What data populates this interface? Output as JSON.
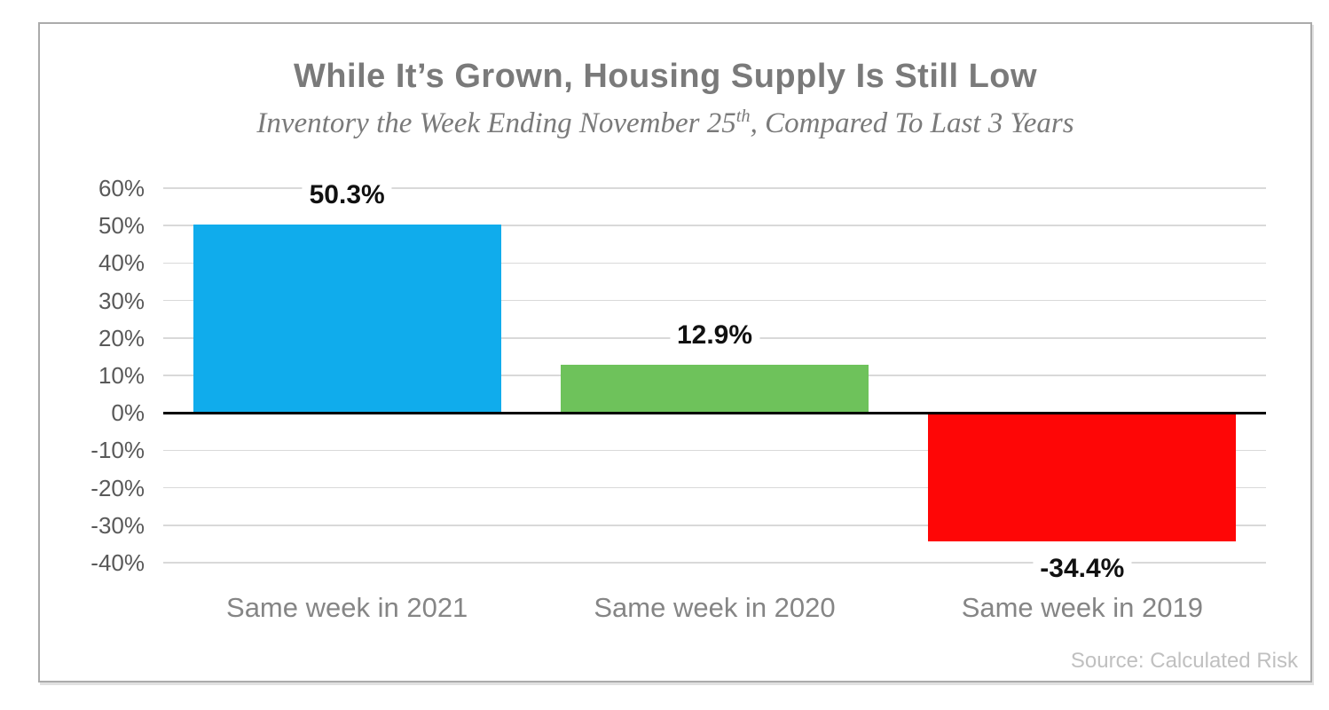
{
  "frame": {
    "border_color": "#ababab",
    "background": "#ffffff"
  },
  "chart_data": {
    "type": "bar",
    "title": "While It’s Grown, Housing Supply Is Still Low",
    "subtitle": {
      "before": "Inventory the Week Ending November 25",
      "sup": "th",
      "after": ", Compared To Last 3 Years",
      "full": "Inventory the Week Ending November 25th, Compared To Last 3 Years"
    },
    "categories": [
      "Same week in 2021",
      "Same week in 2020",
      "Same week in 2019"
    ],
    "values": [
      50.3,
      12.9,
      -34.4
    ],
    "value_labels": [
      "50.3%",
      "12.9%",
      "-34.4%"
    ],
    "bar_colors": [
      "#10acec",
      "#6ec25b",
      "#fe0606"
    ],
    "xlabel": "",
    "ylabel": "",
    "ylim": [
      -40,
      60
    ],
    "yticks": [
      60,
      50,
      40,
      30,
      20,
      10,
      0,
      -10,
      -20,
      -30,
      -40
    ],
    "ytick_labels": [
      "60%",
      "50%",
      "40%",
      "30%",
      "20%",
      "10%",
      "0%",
      "-10%",
      "-20%",
      "-30%",
      "-40%"
    ],
    "grid": true,
    "legend": "none",
    "colors": {
      "gridline": "#d9d9d9",
      "zero_line": "#000000",
      "title_text": "#7a7a7a",
      "subtitle_text": "#7a7a7a",
      "ytick_text": "#595959",
      "category_text": "#858585",
      "value_label_text": "#111111",
      "source_text": "#c0c0c0"
    },
    "source": "Source: Calculated Risk"
  }
}
